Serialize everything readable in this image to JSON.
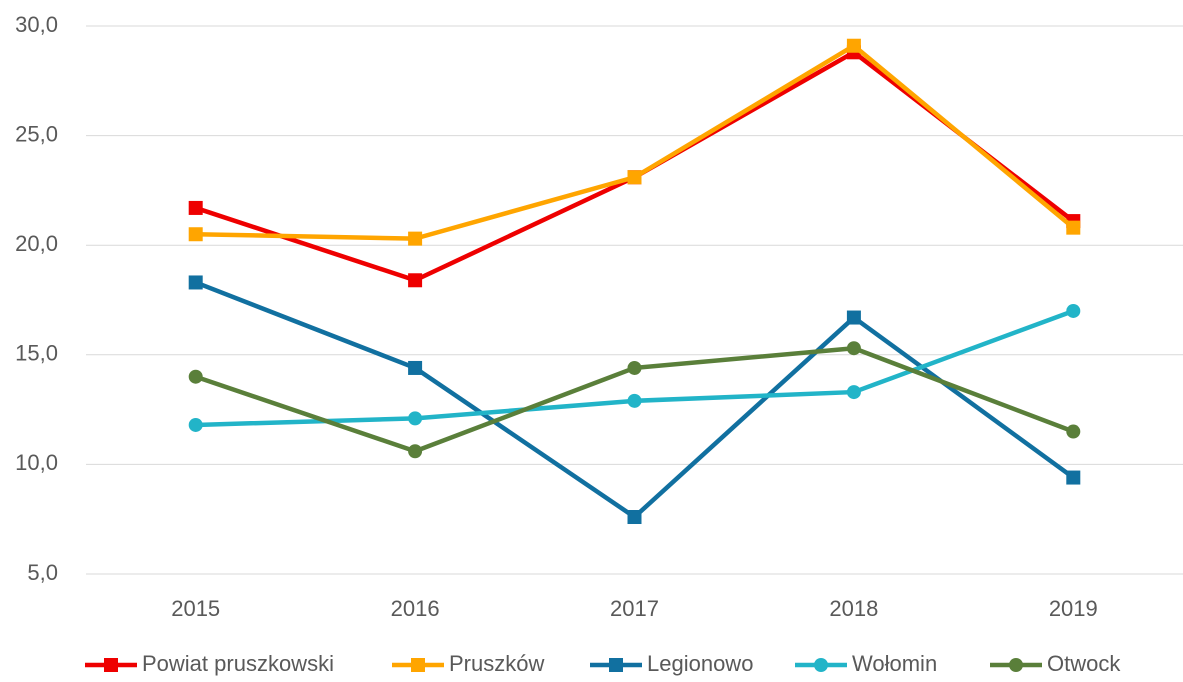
{
  "chart_data": {
    "type": "line",
    "categories": [
      "2015",
      "2016",
      "2017",
      "2018",
      "2019"
    ],
    "series": [
      {
        "name": "Powiat pruszkowski",
        "color": "#ee0000",
        "marker": "square",
        "values": [
          21.7,
          18.4,
          23.1,
          28.8,
          21.1
        ]
      },
      {
        "name": "Pruszków",
        "color": "#ffa500",
        "marker": "square",
        "values": [
          20.5,
          20.3,
          23.1,
          29.1,
          20.8
        ]
      },
      {
        "name": "Legionowo",
        "color": "#1170a0",
        "marker": "square",
        "values": [
          18.3,
          14.4,
          7.6,
          16.7,
          9.4
        ]
      },
      {
        "name": "Wołomin",
        "color": "#22b4c8",
        "marker": "circle",
        "values": [
          11.8,
          12.1,
          12.9,
          13.3,
          17.0
        ]
      },
      {
        "name": "Otwock",
        "color": "#5a7f3a",
        "marker": "circle",
        "values": [
          14.0,
          10.6,
          14.4,
          15.3,
          11.5
        ]
      }
    ],
    "ylim": [
      5,
      30
    ],
    "yticks": [
      {
        "value": 5,
        "label": "5,0"
      },
      {
        "value": 10,
        "label": "10,0"
      },
      {
        "value": 15,
        "label": "15,0"
      },
      {
        "value": 20,
        "label": "20,0"
      },
      {
        "value": 25,
        "label": "25,0"
      },
      {
        "value": 30,
        "label": "30,0"
      }
    ],
    "grid": true,
    "legend": "bottom"
  }
}
